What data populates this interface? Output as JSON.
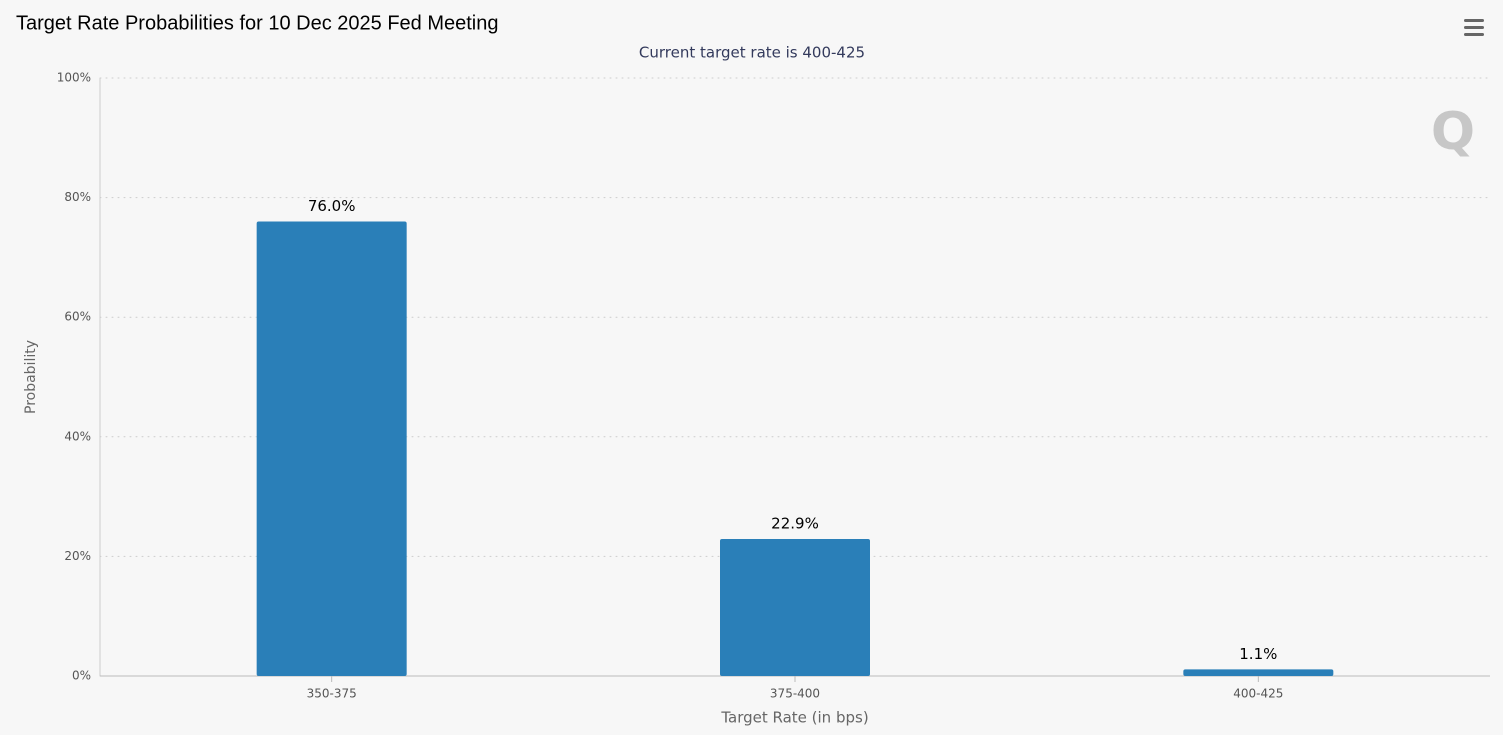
{
  "chart_data": {
    "type": "bar",
    "title": "Target Rate Probabilities for 10 Dec 2025 Fed Meeting",
    "subtitle": "Current target rate is 400-425",
    "x_label": "Target Rate (in bps)",
    "y_label": "Probability",
    "categories": [
      "350-375",
      "375-400",
      "400-425"
    ],
    "values": [
      76.0,
      22.9,
      1.1
    ],
    "value_labels": [
      "76.0%",
      "22.9%",
      "1.1%"
    ],
    "color": "#2a7fb8",
    "ylim": [
      0,
      100
    ],
    "yticks": [
      {
        "value": 0,
        "label": "0%"
      },
      {
        "value": 20,
        "label": "20%"
      },
      {
        "value": 40,
        "label": "40%"
      },
      {
        "value": 60,
        "label": "60%"
      },
      {
        "value": 80,
        "label": "80%"
      },
      {
        "value": 100,
        "label": "100%"
      }
    ],
    "grid": true
  }
}
